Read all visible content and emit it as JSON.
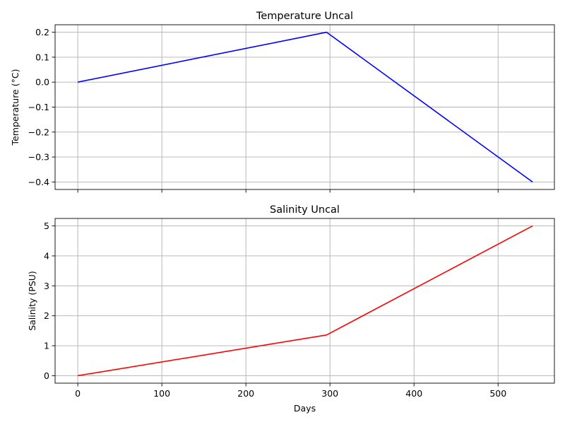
{
  "chart_data": [
    {
      "type": "line",
      "title": "Temperature Uncal",
      "xlabel": "",
      "ylabel": "Temperature (°C)",
      "xlim": [
        -27,
        567
      ],
      "ylim": [
        -0.43,
        0.23
      ],
      "xticks": [
        0,
        100,
        200,
        300,
        400,
        500
      ],
      "xtick_labels_visible": false,
      "yticks": [
        -0.4,
        -0.3,
        -0.2,
        -0.1,
        0.0,
        0.1,
        0.2
      ],
      "ytick_labels": [
        "−0.4",
        "−0.3",
        "−0.2",
        "−0.1",
        "0.0",
        "0.1",
        "0.2"
      ],
      "grid": true,
      "series": [
        {
          "color": "#0000ff",
          "x": [
            0,
            296,
            541
          ],
          "y": [
            0.0,
            0.2,
            -0.4
          ]
        }
      ]
    },
    {
      "type": "line",
      "title": "Salinity Uncal",
      "xlabel": "Days",
      "ylabel": "Salinity (PSU)",
      "xlim": [
        -27,
        567
      ],
      "ylim": [
        -0.25,
        5.25
      ],
      "xticks": [
        0,
        100,
        200,
        300,
        400,
        500
      ],
      "xtick_labels": [
        "0",
        "100",
        "200",
        "300",
        "400",
        "500"
      ],
      "xtick_labels_visible": true,
      "yticks": [
        0,
        1,
        2,
        3,
        4,
        5
      ],
      "ytick_labels": [
        "0",
        "1",
        "2",
        "3",
        "4",
        "5"
      ],
      "grid": true,
      "series": [
        {
          "color": "#ff0000",
          "x": [
            0,
            296,
            541
          ],
          "y": [
            0.0,
            1.36,
            5.0
          ]
        }
      ]
    }
  ]
}
